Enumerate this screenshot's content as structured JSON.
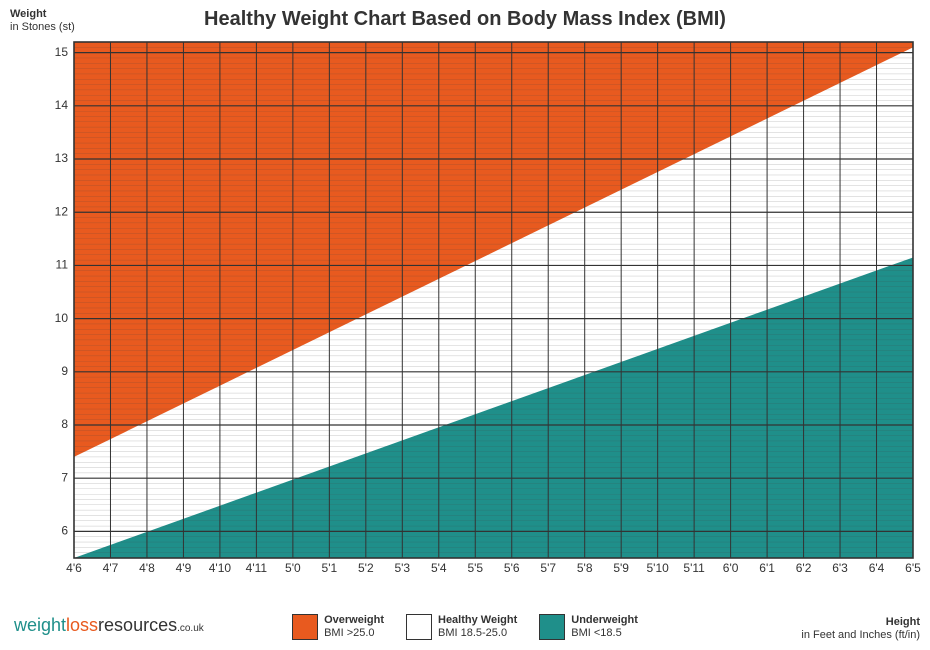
{
  "chart": {
    "type": "area",
    "title": "Healthy Weight Chart Based on Body Mass Index (BMI)",
    "title_fontsize": 20,
    "title_color": "#333333",
    "background_color": "#ffffff",
    "y_axis": {
      "label_line1": "Weight",
      "label_line2": "in Stones (st)",
      "min": 5.5,
      "max": 15.2,
      "ticks": [
        6,
        7,
        8,
        9,
        10,
        11,
        12,
        13,
        14,
        15
      ],
      "minor_step": 0.1,
      "minor_grid_color": "#444444",
      "minor_grid_width": 0.3,
      "major_grid_width": 1.2
    },
    "x_axis": {
      "label_line1": "Height",
      "label_line2": "in Feet and Inches (ft/in)",
      "ticks": [
        "4'6",
        "4'7",
        "4'8",
        "4'9",
        "4'10",
        "4'11",
        "5'0",
        "5'1",
        "5'2",
        "5'3",
        "5'4",
        "5'5",
        "5'6",
        "5'7",
        "5'8",
        "5'9",
        "5'10",
        "5'11",
        "6'0",
        "6'1",
        "6'2",
        "6'3",
        "6'4",
        "6'5"
      ],
      "grid_color": "#333333",
      "grid_width": 1.0
    },
    "bands": {
      "overweight": {
        "color": "#e85a1f",
        "start_y": 7.4,
        "end_y": 15.1,
        "label": "Overweight",
        "sub": "BMI >25.0"
      },
      "healthy": {
        "color": "#ffffff",
        "label": "Healthy Weight",
        "sub": "BMI 18.5-25.0"
      },
      "underweight": {
        "color": "#1f8f8a",
        "start_y": 5.5,
        "end_y": 11.15,
        "label": "Underweight",
        "sub": "BMI <18.5"
      }
    },
    "border_color": "#333333",
    "border_width": 1.6
  },
  "branding": {
    "part1": "weight",
    "part2": "loss",
    "part3": "resources",
    "part4": ".co.uk"
  }
}
